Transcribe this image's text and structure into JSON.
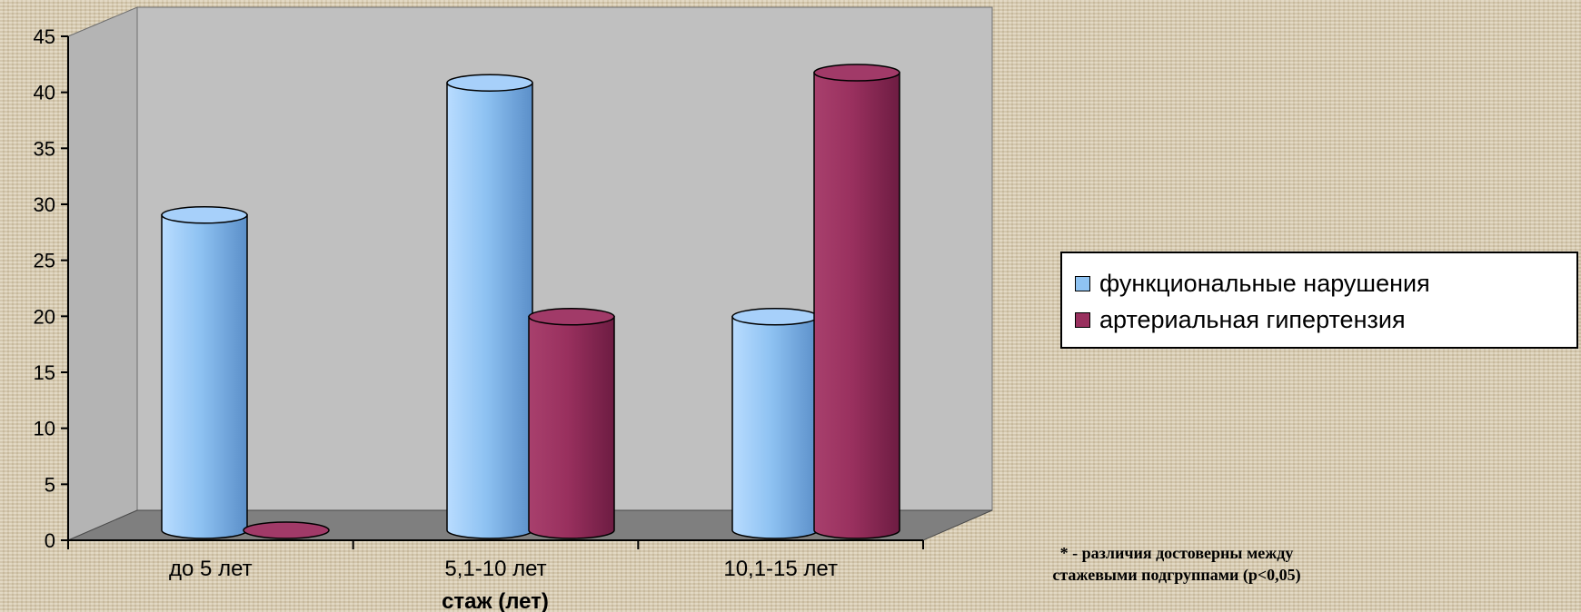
{
  "chart_data": {
    "type": "bar",
    "categories": [
      "до 5 лет",
      "5,1-10 лет",
      "10,1-15 лет"
    ],
    "series": [
      {
        "name": "функциональные нарушения",
        "values": [
          31,
          44,
          21
        ],
        "color": "#8fc3f2"
      },
      {
        "name": "артериальная гипертензия",
        "values": [
          0,
          21,
          45
        ],
        "color": "#99305e"
      }
    ],
    "xlabel": "стаж (лет)",
    "ylabel": "",
    "ylim": [
      0,
      45
    ],
    "yticks": [
      "0",
      "5",
      "10",
      "15",
      "20",
      "25",
      "30",
      "35",
      "40",
      "45"
    ],
    "grid": false,
    "legend_position": "right",
    "style": "3d-cylinder"
  },
  "footnote": {
    "line1": "* - различия достоверны между",
    "line2": "стажевыми подгруппами (p<0,05)"
  }
}
